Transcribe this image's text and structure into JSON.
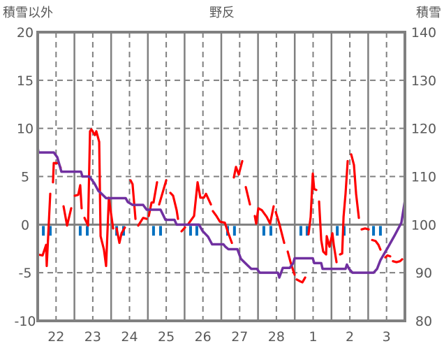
{
  "chart_data": {
    "type": "line",
    "title": "野反",
    "ylabel_left": "積雪以外",
    "ylabel_right": "積雪",
    "ylim_left": [
      -10,
      20
    ],
    "ylim_right": [
      80,
      140
    ],
    "yticks_left": [
      "20",
      "15",
      "10",
      "5",
      "0",
      "-5",
      "-10"
    ],
    "yticks_right": [
      "140",
      "130",
      "120",
      "110",
      "100",
      "90",
      "80"
    ],
    "x_unit": "hours from start of day 22",
    "xlim": [
      0,
      240
    ],
    "xtick_labels": [
      "22",
      "23",
      "24",
      "25",
      "26",
      "27",
      "28",
      "1",
      "2",
      "3"
    ],
    "grid": true,
    "colors": {
      "temp": "#ff0000",
      "snow": "#7030a0",
      "bars": "#0070c0",
      "axis": "#808080"
    },
    "series": [
      {
        "name": "temperature",
        "axis": "left",
        "segments": [
          [
            [
              0,
              -3.1
            ],
            [
              3.2,
              -3.2
            ],
            [
              5.5,
              -2.1
            ],
            [
              5.9,
              -4.3
            ],
            [
              8.2,
              3.2
            ]
          ],
          [
            [
              10,
              4.4
            ],
            [
              10.5,
              6.4
            ],
            [
              13.7,
              6.4
            ],
            [
              15,
              5.9
            ]
          ],
          [
            [
              16.9,
              1.9
            ],
            [
              19.2,
              -0.1
            ],
            [
              21.9,
              1.7
            ]
          ],
          [
            [
              24.2,
              3.0
            ],
            [
              26.5,
              3.1
            ],
            [
              27.8,
              4.1
            ],
            [
              28.7,
              1.7
            ]
          ],
          [
            [
              30.6,
              0.7
            ],
            [
              32.9,
              -0.1
            ],
            [
              34.2,
              9.7
            ],
            [
              35.1,
              9.9
            ],
            [
              37.4,
              9.3
            ],
            [
              38.3,
              9.7
            ],
            [
              40.2,
              8.6
            ],
            [
              41.1,
              -1.2
            ],
            [
              43.3,
              -2.6
            ],
            [
              44.7,
              -4.3
            ],
            [
              46.5,
              2.8
            ],
            [
              49.3,
              -0.4
            ]
          ],
          [
            [
              51.6,
              -0.4
            ],
            [
              53.4,
              -1.9
            ],
            [
              54.8,
              -0.9
            ],
            [
              57,
              -0.3
            ]
          ],
          [
            [
              60.7,
              4.6
            ],
            [
              62,
              4.2
            ],
            [
              63.9,
              0.6
            ]
          ],
          [
            [
              65.7,
              -0.1
            ],
            [
              68.9,
              0.7
            ],
            [
              71.2,
              0.6
            ]
          ],
          [
            [
              72.6,
              0.9
            ],
            [
              74.4,
              2.3
            ],
            [
              75.7,
              2.3
            ],
            [
              78,
              4.4
            ]
          ],
          [
            [
              79.4,
              2.1
            ],
            [
              84,
              4.6
            ]
          ],
          [
            [
              86.7,
              3.3
            ],
            [
              88.5,
              3.0
            ],
            [
              90.8,
              1.5
            ],
            [
              91.7,
              0.6
            ]
          ],
          [
            [
              94,
              -0.7
            ],
            [
              96.3,
              -0.3
            ]
          ],
          [
            [
              98.6,
              0.1
            ],
            [
              102.2,
              0.9
            ],
            [
              104.5,
              4.4
            ],
            [
              106.3,
              2.8
            ],
            [
              108.6,
              2.8
            ],
            [
              110,
              3.2
            ],
            [
              113.2,
              2.1
            ]
          ],
          [
            [
              114.5,
              1.4
            ],
            [
              116.8,
              0.9
            ],
            [
              119.1,
              0.3
            ],
            [
              122.3,
              0.2
            ],
            [
              124.6,
              -0.9
            ],
            [
              126.9,
              -1.9
            ]
          ],
          [
            [
              128.2,
              4.9
            ],
            [
              129.6,
              6.0
            ],
            [
              131.4,
              5.2
            ],
            [
              133.7,
              6.6
            ]
          ],
          [
            [
              136,
              3.9
            ],
            [
              138.7,
              2.1
            ]
          ],
          [
            [
              141.9,
              0.9
            ],
            [
              142.8,
              0.1
            ],
            [
              144.2,
              1.7
            ],
            [
              146.5,
              1.5
            ],
            [
              149.7,
              0.8
            ],
            [
              151.9,
              0.1
            ],
            [
              154.2,
              1.9
            ]
          ],
          [
            [
              155.6,
              1.3
            ],
            [
              157.9,
              0.1
            ],
            [
              161.1,
              -1.9
            ]
          ],
          [
            [
              163.4,
              -2.8
            ],
            [
              165.6,
              -4.1
            ],
            [
              167.9,
              -5.2
            ]
          ],
          [
            [
              169.3,
              -5.7
            ],
            [
              171.6,
              -5.9
            ],
            [
              173,
              -6.0
            ],
            [
              174.8,
              -5.5
            ]
          ],
          [
            [
              177,
              -1.0
            ],
            [
              178.4,
              0.8
            ],
            [
              179.8,
              5.3
            ],
            [
              180.7,
              3.7
            ],
            [
              182.1,
              3.6
            ]
          ],
          [
            [
              183.9,
              2.4
            ],
            [
              185.3,
              -1.6
            ],
            [
              186.6,
              -2.8
            ],
            [
              188.5,
              -3.1
            ],
            [
              188.9,
              -1.2
            ],
            [
              190.7,
              -2.3
            ],
            [
              192.6,
              -0.9
            ],
            [
              193.5,
              -2.1
            ],
            [
              195.3,
              -3.9
            ]
          ],
          [
            [
              197.6,
              -3.1
            ],
            [
              199,
              -3.0
            ],
            [
              199.9,
              0.8
            ],
            [
              201.2,
              3.2
            ],
            [
              202.6,
              6.6
            ]
          ],
          [
            [
              204.9,
              7.3
            ],
            [
              206.7,
              6.2
            ],
            [
              208.1,
              3.2
            ],
            [
              209.9,
              0.7
            ]
          ],
          [
            [
              211.7,
              -0.5
            ],
            [
              214,
              -0.4
            ],
            [
              216.3,
              -0.5
            ]
          ],
          [
            [
              218.6,
              -1.6
            ],
            [
              220.8,
              -1.7
            ],
            [
              222.7,
              -2.1
            ],
            [
              224,
              -2.6
            ]
          ],
          [
            [
              227.2,
              -3.4
            ],
            [
              228.6,
              -3.2
            ],
            [
              230.4,
              -3.3
            ]
          ],
          [
            [
              232.2,
              -3.8
            ],
            [
              234.5,
              -3.9
            ],
            [
              236.8,
              -3.8
            ],
            [
              238.2,
              -3.6
            ]
          ]
        ]
      },
      {
        "name": "snow_depth",
        "axis": "right",
        "points": [
          [
            0,
            116
          ],
          [
            0.5,
            115
          ],
          [
            10.5,
            115
          ],
          [
            12.8,
            114
          ],
          [
            15.5,
            111
          ],
          [
            28.3,
            111
          ],
          [
            29.2,
            110
          ],
          [
            33.8,
            110
          ],
          [
            37,
            108.6
          ],
          [
            39.7,
            107
          ],
          [
            41.5,
            106.5
          ],
          [
            44.7,
            105.5
          ],
          [
            57.5,
            105.5
          ],
          [
            58.9,
            104.7
          ],
          [
            62,
            104.1
          ],
          [
            68.9,
            104.1
          ],
          [
            71.2,
            103.1
          ],
          [
            80.3,
            103.1
          ],
          [
            83.5,
            101
          ],
          [
            89.4,
            101
          ],
          [
            90.8,
            100
          ],
          [
            105.4,
            100
          ],
          [
            107.7,
            98.7
          ],
          [
            111.3,
            97.5
          ],
          [
            114,
            95.9
          ],
          [
            121.4,
            95.9
          ],
          [
            122.7,
            95.4
          ],
          [
            124.6,
            94.9
          ],
          [
            130.5,
            94.9
          ],
          [
            132.8,
            92.9
          ],
          [
            137.3,
            91.5
          ],
          [
            139.6,
            90.8
          ],
          [
            143.3,
            90.8
          ],
          [
            145.1,
            90
          ],
          [
            157,
            90
          ],
          [
            157.9,
            89
          ],
          [
            160.2,
            91
          ],
          [
            164.7,
            91
          ],
          [
            167,
            92
          ],
          [
            167.9,
            93
          ],
          [
            179.8,
            93
          ],
          [
            180.7,
            92
          ],
          [
            185.3,
            92
          ],
          [
            186.2,
            90.8
          ],
          [
            201.2,
            90.8
          ],
          [
            202.1,
            91.7
          ],
          [
            203.5,
            90.8
          ],
          [
            205.8,
            90
          ],
          [
            219.5,
            90
          ],
          [
            221.8,
            90.8
          ],
          [
            224,
            92.6
          ],
          [
            228.6,
            95.1
          ],
          [
            233.2,
            97.7
          ],
          [
            237.7,
            100.4
          ],
          [
            240,
            105
          ]
        ]
      },
      {
        "name": "bars",
        "axis": "left",
        "points": [
          [
            3.7,
            -1
          ],
          [
            8.2,
            -1
          ],
          [
            27.8,
            -1
          ],
          [
            32.4,
            -1
          ],
          [
            51.6,
            -1
          ],
          [
            56.1,
            -1
          ],
          [
            75.7,
            -1
          ],
          [
            80.3,
            -1
          ],
          [
            99.9,
            -1
          ],
          [
            104,
            -1
          ],
          [
            124.1,
            -1
          ],
          [
            128.6,
            -1
          ],
          [
            147.8,
            -1
          ],
          [
            152.4,
            -1
          ],
          [
            172,
            -1
          ],
          [
            176.1,
            -1
          ],
          [
            195.8,
            -1
          ],
          [
            200.3,
            -1
          ],
          [
            219.5,
            -1
          ],
          [
            224,
            -1
          ]
        ]
      }
    ]
  }
}
